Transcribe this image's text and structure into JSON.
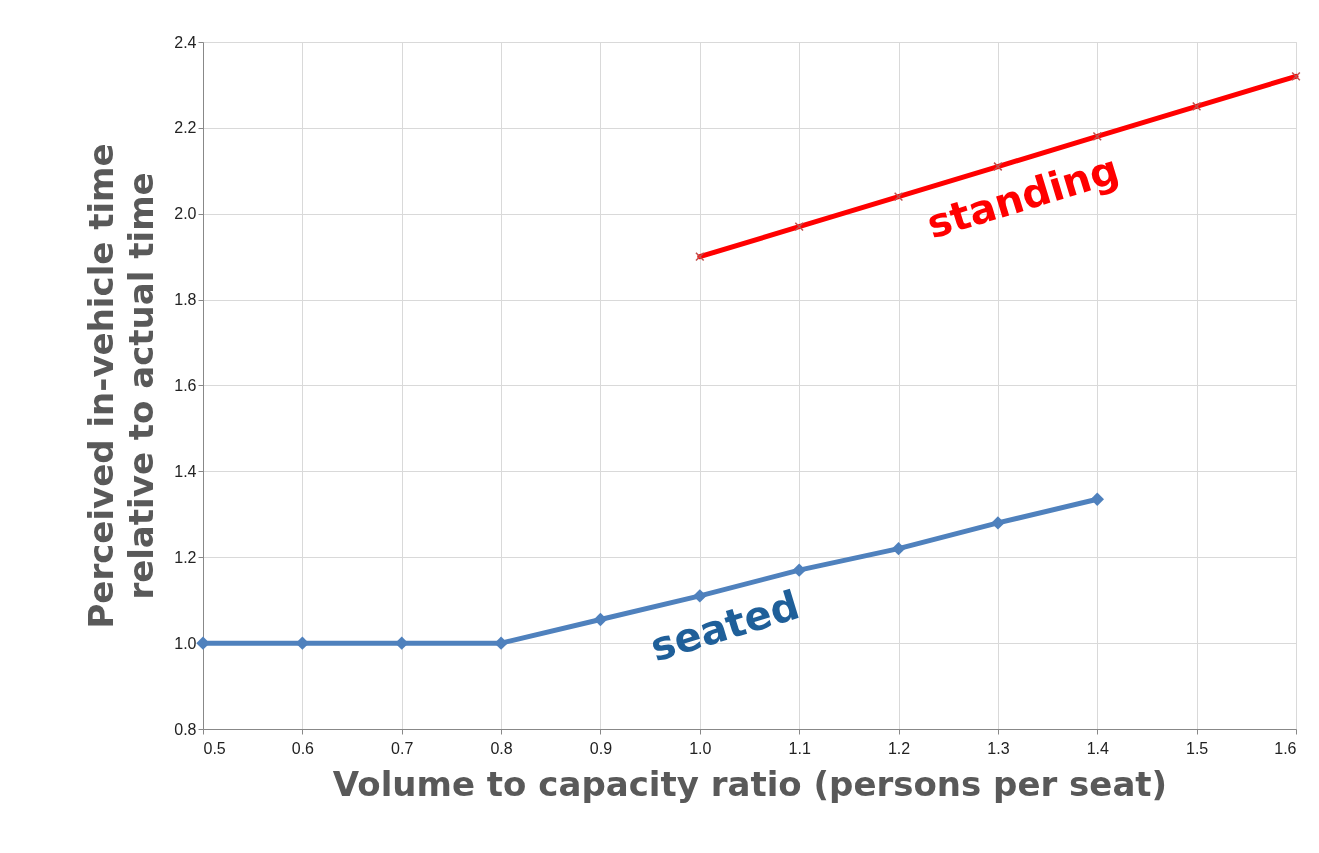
{
  "chart_data": {
    "type": "line",
    "xlabel": "Volume to capacity ratio (persons per seat)",
    "ylabel": "Perceived in-vehicle time\nrelative to actual time",
    "series": [
      {
        "name": "seated",
        "color": "#4f81bd",
        "marker": "diamond",
        "x": [
          0.5,
          0.6,
          0.7,
          0.8,
          0.9,
          1.0,
          1.1,
          1.2,
          1.3,
          1.4
        ],
        "values": [
          1.0,
          1.0,
          1.0,
          1.0,
          1.055,
          1.11,
          1.17,
          1.22,
          1.28,
          1.335
        ]
      },
      {
        "name": "standing",
        "color": "#ff0000",
        "marker": "cross",
        "x": [
          1.0,
          1.1,
          1.2,
          1.3,
          1.4,
          1.5,
          1.6
        ],
        "values": [
          1.9,
          1.97,
          2.04,
          2.11,
          2.18,
          2.25,
          2.32
        ]
      }
    ],
    "xlim": [
      0.5,
      1.6
    ],
    "xticks": [
      0.5,
      0.6,
      0.7,
      0.8,
      0.9,
      {
        "value": 1,
        "label": "1.0"
      },
      1.1,
      1.2,
      1.3,
      1.4,
      1.5,
      1.6
    ],
    "ylim": [
      0.8,
      2.4
    ],
    "yticks": [
      0.8,
      {
        "value": 1,
        "label": "1.0"
      },
      1.2,
      1.4,
      1.6,
      1.8,
      {
        "value": 2,
        "label": "2.0"
      },
      2.2,
      2.4
    ],
    "grid": true
  }
}
